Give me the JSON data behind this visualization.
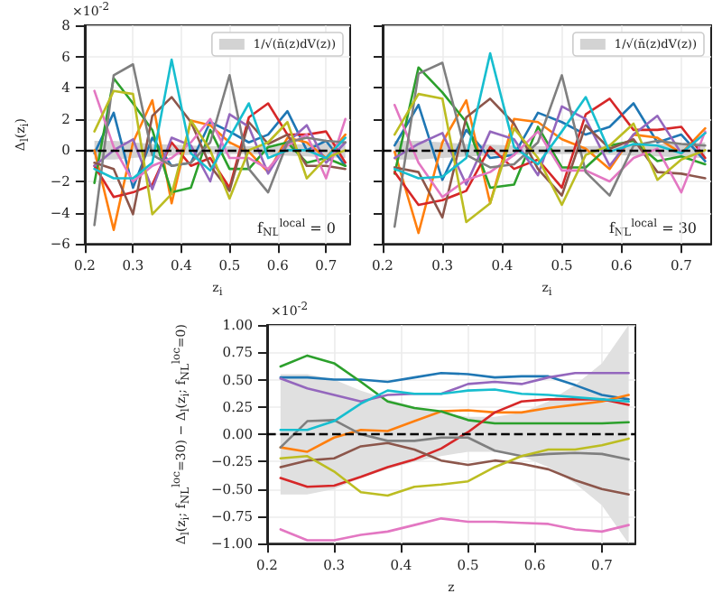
{
  "chart_data": [
    {
      "type": "line",
      "xlabel": "z$_{i}$",
      "ylabel": "Δ$_{l}$(z$_{i}$)",
      "annotations": [
        "×10$^{-2}$",
        "f$_{NL}$$^{local}$ = 0"
      ],
      "x": [
        0.22,
        0.26,
        0.3,
        0.34,
        0.38,
        0.42,
        0.46,
        0.5,
        0.54,
        0.58,
        0.62,
        0.66,
        0.7,
        0.74
      ],
      "xlim": [
        0.2,
        0.75
      ],
      "xticks": [
        0.2,
        0.3,
        0.4,
        0.5,
        0.6,
        0.7
      ],
      "ylim": [
        -6,
        8
      ],
      "yticks": [
        {
          "value": -6,
          "label": "−6"
        },
        {
          "value": -4,
          "label": "−4"
        },
        {
          "value": -2,
          "label": "−2"
        },
        0,
        2,
        4,
        6,
        8
      ],
      "grid": true,
      "legend": "top right",
      "marker": "none",
      "line_style": "solid",
      "ref_lines": [
        {
          "axis": "y",
          "value": 0,
          "label": null,
          "color": "#000000",
          "line_style": "dashed"
        }
      ],
      "series": [
        {
          "name": "1/√(n̄(z)dV(z))",
          "color": "#d3d3d3",
          "values": [
            null,
            null,
            null,
            null,
            null,
            null,
            null,
            null,
            null,
            null,
            null,
            null,
            null,
            null
          ],
          "lower": [
            -0.6,
            -0.6,
            -0.5,
            -0.4,
            -0.35,
            -0.3,
            -0.25,
            -0.25,
            -0.25,
            -0.3,
            -0.35,
            -0.4,
            -0.45,
            -0.5
          ],
          "upper": [
            0.6,
            0.6,
            0.5,
            0.4,
            0.35,
            0.3,
            0.25,
            0.25,
            0.25,
            0.3,
            0.35,
            0.4,
            0.45,
            0.5
          ]
        },
        {
          "color": "#1f77b4",
          "values": [
            -0.2,
            2.4,
            -2.4,
            0.8,
            -1.0,
            -0.8,
            1.8,
            1.2,
            0.5,
            1.0,
            2.5,
            0.0,
            0.6,
            -1.0
          ]
        },
        {
          "color": "#ff7f0e",
          "values": [
            0.0,
            -5.1,
            0.5,
            3.2,
            -3.4,
            1.9,
            1.6,
            0.5,
            -0.1,
            -1.4,
            0.8,
            0.5,
            -0.5,
            1.0
          ]
        },
        {
          "color": "#2ca02c",
          "values": [
            -2.1,
            4.6,
            3.0,
            1.3,
            -2.7,
            -2.4,
            1.3,
            -1.2,
            -1.2,
            0.2,
            0.5,
            -0.8,
            -0.5,
            -1.0
          ]
        },
        {
          "color": "#d62728",
          "values": [
            -1.0,
            -3.0,
            -2.7,
            -2.2,
            0.5,
            -1.0,
            -0.5,
            -2.4,
            2.1,
            3.0,
            1.0,
            1.0,
            1.2,
            -0.8
          ]
        },
        {
          "color": "#9467bd",
          "values": [
            -1.0,
            0.0,
            0.7,
            -2.5,
            0.8,
            0.3,
            -2.0,
            2.3,
            1.5,
            -1.5,
            0.5,
            1.6,
            -0.8,
            0.5
          ]
        },
        {
          "color": "#8c564b",
          "values": [
            -0.8,
            -1.2,
            -4.1,
            2.2,
            3.4,
            1.8,
            -1.0,
            -2.6,
            1.8,
            0.4,
            1.0,
            -1.0,
            -1.0,
            -1.2
          ]
        },
        {
          "color": "#e377c2",
          "values": [
            3.8,
            0.2,
            -2.0,
            -1.0,
            -0.5,
            0.5,
            2.0,
            -0.5,
            -0.5,
            -1.2,
            0.3,
            1.0,
            -1.8,
            2.0
          ]
        },
        {
          "color": "#7f7f7f",
          "values": [
            -4.8,
            4.8,
            5.5,
            -0.3,
            -1.0,
            -0.8,
            0.5,
            4.8,
            -1.2,
            -2.7,
            0.5,
            0.8,
            0.6,
            0.5
          ]
        },
        {
          "color": "#bcbd22",
          "values": [
            1.2,
            3.8,
            3.6,
            -4.1,
            -2.8,
            1.9,
            0.0,
            -3.1,
            0.0,
            0.5,
            1.8,
            -1.8,
            -0.5,
            0.0
          ]
        },
        {
          "color": "#17becf",
          "values": [
            -1.2,
            -1.8,
            -1.8,
            -0.8,
            5.8,
            -0.2,
            -1.3,
            0.8,
            3.0,
            -0.5,
            0.0,
            0.0,
            -0.5,
            0.8
          ]
        }
      ]
    },
    {
      "type": "line",
      "xlabel": "z$_{i}$",
      "annotations": [
        "f$_{NL}$$^{local}$ = 30"
      ],
      "tick_labels": "x",
      "x": [
        0.22,
        0.26,
        0.3,
        0.34,
        0.38,
        0.42,
        0.46,
        0.5,
        0.54,
        0.58,
        0.62,
        0.66,
        0.7,
        0.74
      ],
      "xlim": [
        0.2,
        0.75
      ],
      "xticks": [
        0.2,
        0.3,
        0.4,
        0.5,
        0.6,
        0.7
      ],
      "ylim": [
        -6,
        8
      ],
      "yticks": [
        -6,
        -4,
        -2,
        0,
        2,
        4,
        6,
        8
      ],
      "grid": true,
      "legend": "top right",
      "marker": "none",
      "line_style": "solid",
      "ref_lines": [
        {
          "axis": "y",
          "value": 0,
          "label": null,
          "color": "#000000",
          "line_style": "dashed"
        }
      ],
      "series": [
        {
          "name": "1/√(n̄(z)dV(z))",
          "color": "#d3d3d3",
          "values": [
            null,
            null,
            null,
            null,
            null,
            null,
            null,
            null,
            null,
            null,
            null,
            null,
            null,
            null
          ],
          "lower": [
            -0.6,
            -0.6,
            -0.5,
            -0.4,
            -0.35,
            -0.3,
            -0.25,
            -0.25,
            -0.25,
            -0.3,
            -0.35,
            -0.4,
            -0.45,
            -0.5
          ],
          "upper": [
            0.6,
            0.6,
            0.5,
            0.4,
            0.35,
            0.3,
            0.25,
            0.25,
            0.25,
            0.3,
            0.35,
            0.4,
            0.45,
            0.5
          ]
        },
        {
          "color": "#1f77b4",
          "values": [
            0.3,
            2.9,
            -1.9,
            1.3,
            -0.5,
            -0.3,
            2.4,
            1.8,
            1.0,
            1.5,
            3.0,
            0.5,
            1.0,
            -0.7
          ]
        },
        {
          "color": "#ff7f0e",
          "values": [
            -0.1,
            -5.3,
            0.5,
            3.2,
            -3.4,
            2.0,
            1.8,
            0.7,
            0.1,
            -1.2,
            1.0,
            0.8,
            -0.2,
            1.4
          ]
        },
        {
          "color": "#2ca02c",
          "values": [
            -1.5,
            5.3,
            3.7,
            1.8,
            -2.4,
            -2.2,
            1.5,
            -1.1,
            -1.1,
            0.3,
            0.6,
            -0.7,
            -0.4,
            -0.9
          ]
        },
        {
          "color": "#d62728",
          "values": [
            -1.4,
            -3.5,
            -3.2,
            -2.6,
            0.2,
            -1.2,
            -0.6,
            -2.4,
            2.3,
            3.3,
            1.3,
            1.3,
            1.5,
            -0.5
          ]
        },
        {
          "color": "#9467bd",
          "values": [
            -0.5,
            0.4,
            1.1,
            -2.2,
            1.2,
            0.7,
            -1.6,
            2.8,
            2.0,
            -1.0,
            1.0,
            2.2,
            -0.2,
            1.1
          ]
        },
        {
          "color": "#8c564b",
          "values": [
            -1.1,
            -1.4,
            -4.3,
            2.1,
            3.3,
            1.7,
            -1.2,
            -2.9,
            1.6,
            0.1,
            0.7,
            -1.4,
            -1.5,
            -1.8
          ]
        },
        {
          "color": "#e377c2",
          "values": [
            2.9,
            -0.8,
            -3.0,
            -1.9,
            -1.4,
            -0.3,
            1.2,
            -1.3,
            -1.3,
            -2.0,
            -0.5,
            0.1,
            -2.7,
            1.2
          ]
        },
        {
          "color": "#7f7f7f",
          "values": [
            -4.9,
            4.9,
            5.6,
            -0.3,
            -1.1,
            -0.9,
            0.5,
            4.8,
            -1.4,
            -2.9,
            0.3,
            0.6,
            0.4,
            0.3
          ]
        },
        {
          "color": "#bcbd22",
          "values": [
            1.0,
            3.6,
            3.3,
            -4.6,
            -3.4,
            1.4,
            -0.5,
            -3.5,
            -0.3,
            0.3,
            1.7,
            -1.9,
            -0.6,
            0.0
          ]
        },
        {
          "color": "#17becf",
          "values": [
            -1.2,
            -1.8,
            -1.7,
            -0.5,
            6.2,
            0.2,
            -0.9,
            1.2,
            3.4,
            -0.1,
            0.4,
            0.3,
            -0.2,
            1.1
          ]
        }
      ]
    },
    {
      "type": "line",
      "xlabel": "z",
      "ylabel": "Δ$_{l}$(z$_{i}$; f$_{NL}$$^{loc}$=30) − Δ$_{l}$(z$_{i}$; f$_{NL}$$^{loc}$=0)",
      "annotations": [
        "×10$^{-2}$"
      ],
      "x": [
        0.22,
        0.26,
        0.3,
        0.34,
        0.38,
        0.42,
        0.46,
        0.5,
        0.54,
        0.58,
        0.62,
        0.66,
        0.7,
        0.74
      ],
      "xlim": [
        0.2,
        0.75
      ],
      "xticks": [
        0.2,
        0.3,
        0.4,
        0.5,
        0.6,
        0.7
      ],
      "ylim": [
        -1,
        1
      ],
      "yticks": [
        {
          "value": -1,
          "label": "−1.00"
        },
        {
          "value": -0.75,
          "label": "−0.75"
        },
        {
          "value": -0.5,
          "label": "−0.50"
        },
        {
          "value": -0.25,
          "label": "−0.25"
        },
        {
          "value": 0,
          "label": "0.00"
        },
        {
          "value": 0.25,
          "label": "0.25"
        },
        {
          "value": 0.5,
          "label": "0.50"
        },
        {
          "value": 0.75,
          "label": "0.75"
        },
        {
          "value": 1,
          "label": "1.00"
        }
      ],
      "grid": true,
      "marker": "none",
      "line_style": "solid",
      "ref_lines": [
        {
          "axis": "y",
          "value": 0,
          "label": null,
          "color": "#000000",
          "line_style": "dashed"
        }
      ],
      "series": [
        {
          "color": "#e0e0e0",
          "values": [
            null,
            null,
            null,
            null,
            null,
            null,
            null,
            null,
            null,
            null,
            null,
            null,
            null,
            null
          ],
          "lower": [
            -0.55,
            -0.55,
            -0.5,
            -0.4,
            -0.32,
            -0.25,
            -0.2,
            -0.16,
            -0.16,
            -0.2,
            -0.3,
            -0.45,
            -0.65,
            -1.0
          ],
          "upper": [
            0.55,
            0.55,
            0.5,
            0.4,
            0.32,
            0.25,
            0.2,
            0.16,
            0.16,
            0.2,
            0.3,
            0.45,
            0.65,
            1.0
          ]
        },
        {
          "color": "#1f77b4",
          "values": [
            0.52,
            0.52,
            0.5,
            0.5,
            0.48,
            0.52,
            0.56,
            0.55,
            0.52,
            0.53,
            0.53,
            0.45,
            0.36,
            0.32
          ]
        },
        {
          "color": "#ff7f0e",
          "values": [
            -0.12,
            -0.16,
            -0.03,
            0.04,
            0.03,
            0.12,
            0.21,
            0.22,
            0.2,
            0.2,
            0.24,
            0.27,
            0.3,
            0.36
          ]
        },
        {
          "color": "#2ca02c",
          "values": [
            0.62,
            0.72,
            0.65,
            0.48,
            0.3,
            0.24,
            0.21,
            0.13,
            0.1,
            0.1,
            0.1,
            0.1,
            0.1,
            0.11
          ]
        },
        {
          "color": "#d62728",
          "values": [
            -0.4,
            -0.48,
            -0.47,
            -0.39,
            -0.3,
            -0.23,
            -0.13,
            0.02,
            0.2,
            0.3,
            0.32,
            0.32,
            0.32,
            0.27
          ]
        },
        {
          "color": "#9467bd",
          "values": [
            0.51,
            0.42,
            0.36,
            0.3,
            0.36,
            0.37,
            0.37,
            0.46,
            0.48,
            0.46,
            0.52,
            0.56,
            0.56,
            0.56
          ]
        },
        {
          "color": "#8c564b",
          "values": [
            -0.3,
            -0.24,
            -0.22,
            -0.11,
            -0.08,
            -0.14,
            -0.24,
            -0.28,
            -0.24,
            -0.27,
            -0.32,
            -0.42,
            -0.5,
            -0.55
          ]
        },
        {
          "color": "#e377c2",
          "values": [
            -0.87,
            -0.97,
            -0.97,
            -0.92,
            -0.89,
            -0.83,
            -0.77,
            -0.8,
            -0.8,
            -0.81,
            -0.82,
            -0.87,
            -0.89,
            -0.83
          ]
        },
        {
          "color": "#7f7f7f",
          "values": [
            -0.12,
            0.12,
            0.13,
            0.0,
            -0.06,
            -0.06,
            -0.03,
            -0.03,
            -0.15,
            -0.2,
            -0.18,
            -0.17,
            -0.18,
            -0.23
          ]
        },
        {
          "color": "#bcbd22",
          "values": [
            -0.22,
            -0.2,
            -0.34,
            -0.53,
            -0.56,
            -0.48,
            -0.46,
            -0.43,
            -0.3,
            -0.2,
            -0.14,
            -0.14,
            -0.1,
            -0.04
          ]
        },
        {
          "color": "#17becf",
          "values": [
            0.04,
            0.04,
            0.12,
            0.28,
            0.4,
            0.37,
            0.37,
            0.4,
            0.41,
            0.37,
            0.36,
            0.34,
            0.32,
            0.3
          ]
        }
      ]
    }
  ]
}
